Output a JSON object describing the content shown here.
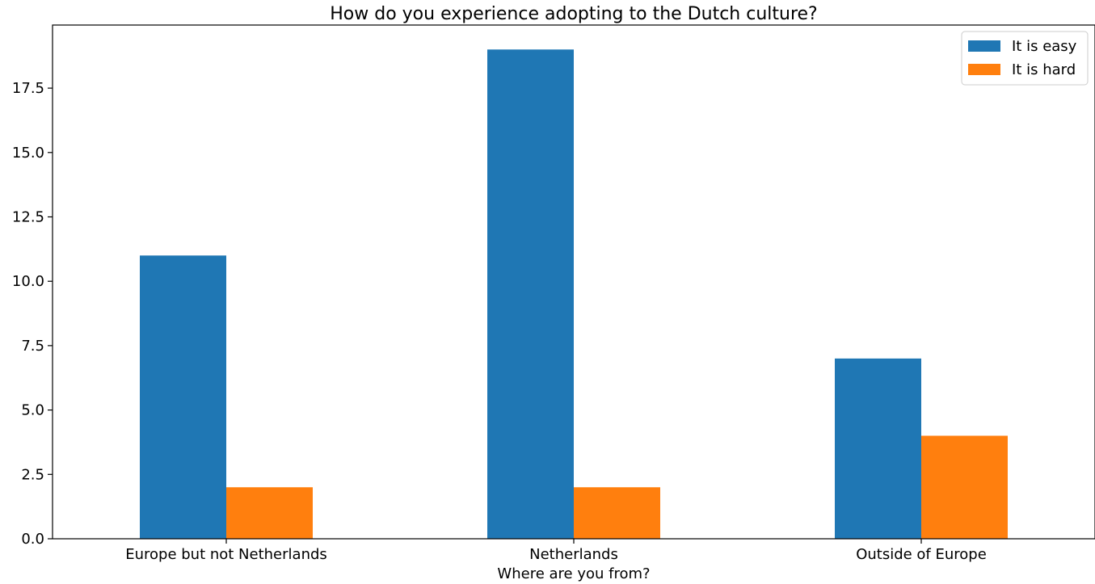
{
  "chart_data": {
    "type": "bar",
    "title": "How do you experience adopting to the Dutch culture?",
    "xlabel": "Where are you from?",
    "ylabel": "",
    "categories": [
      "Europe but not Netherlands",
      "Netherlands",
      "Outside of Europe"
    ],
    "series": [
      {
        "name": "It is easy",
        "values": [
          11,
          19,
          7
        ],
        "color": "#1f77b4"
      },
      {
        "name": "It is hard",
        "values": [
          2,
          2,
          4
        ],
        "color": "#ff7f0e"
      }
    ],
    "ylim": [
      0,
      19.95
    ],
    "yticks": [
      "0.0",
      "2.5",
      "5.0",
      "7.5",
      "10.0",
      "12.5",
      "15.0",
      "17.5"
    ],
    "grid": false,
    "legend_position": "top-right"
  }
}
